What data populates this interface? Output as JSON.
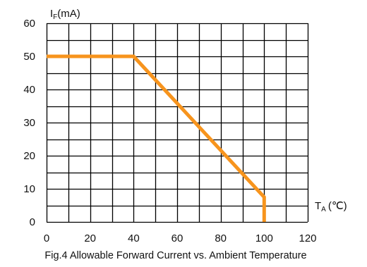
{
  "chart_data": {
    "type": "line",
    "caption": "Fig.4 Allowable Forward Current vs. Ambient Temperature",
    "ylabel": {
      "main": "I",
      "sub": "F",
      "unit": "(mA)"
    },
    "xlabel": {
      "main": "T",
      "sub": "A",
      "unit": "(℃)"
    },
    "xlim": [
      0,
      120
    ],
    "ylim": [
      0,
      60
    ],
    "xticks": [
      0,
      20,
      40,
      60,
      80,
      100,
      120
    ],
    "yticks": [
      0,
      10,
      20,
      30,
      40,
      50,
      60
    ],
    "grid": true,
    "grid_x_step": 10,
    "grid_y_step": 5,
    "line_color": "#F7941D",
    "series": [
      {
        "x": [
          0,
          40,
          100,
          100
        ],
        "y": [
          50,
          50,
          7.5,
          0
        ]
      }
    ]
  }
}
